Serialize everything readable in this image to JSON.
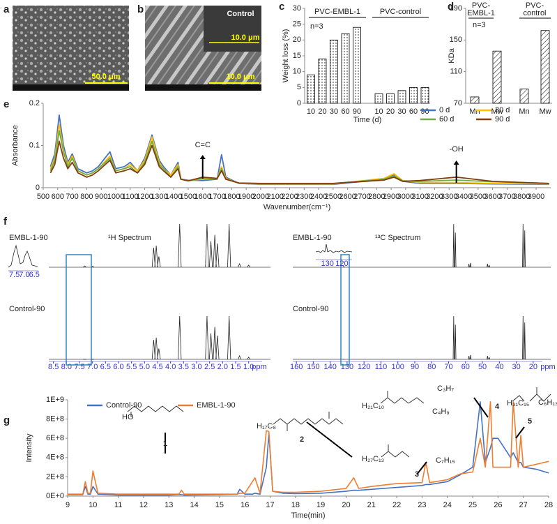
{
  "chart_data": [
    {
      "type": "image",
      "panel": "a",
      "scale_bar": "50.0 μm"
    },
    {
      "type": "image",
      "panel": "b",
      "label": "Control",
      "scale_bars": [
        "10.0 μm",
        "10.0 μm"
      ]
    },
    {
      "type": "bar",
      "panel": "c",
      "y_label": "Weight loss (%)",
      "x_label": "Time (d)",
      "groups": [
        "PVC-EMBL-1",
        "PVC-control"
      ],
      "annotation": "n=3",
      "categories": [
        "10",
        "20",
        "30",
        "60",
        "90",
        "10",
        "20",
        "30",
        "60",
        "90"
      ],
      "values": [
        9,
        14,
        20,
        22,
        24,
        3,
        3,
        4,
        5,
        5
      ],
      "ylim": [
        0,
        30
      ],
      "yticks": [
        0,
        5,
        10,
        15,
        20,
        25,
        30
      ],
      "fill": "dots"
    },
    {
      "type": "bar",
      "panel": "d",
      "y_label": "KDa",
      "groups": [
        [
          "PVC-",
          "EMBL-1"
        ],
        [
          "PVC-",
          "control"
        ]
      ],
      "annotation": "n=3",
      "categories": [
        "Mn",
        "Mw",
        "Mn",
        "Mw"
      ],
      "values": [
        78,
        136,
        88,
        162
      ],
      "ylim": [
        70,
        190
      ],
      "yticks": [
        70,
        110,
        150,
        190
      ],
      "fill": "hatch"
    },
    {
      "type": "line",
      "panel": "e",
      "y_label": "Absorbance",
      "x_label": "Wavenumber(cm⁻¹)",
      "annotations": [
        "C=C",
        "-OH"
      ],
      "xlim": [
        500,
        4000
      ],
      "xticks": [
        500,
        600,
        700,
        800,
        900,
        1000,
        1100,
        1200,
        1300,
        1400,
        1500,
        1600,
        1700,
        1800,
        1900,
        2000,
        2100,
        2200,
        2300,
        2400,
        2500,
        2600,
        2700,
        2800,
        2900,
        3000,
        3100,
        3200,
        3300,
        3400,
        3500,
        3600,
        3700,
        3800,
        3900
      ],
      "ylim": [
        0,
        0.2
      ],
      "yticks": [
        0,
        0.1,
        0.2
      ],
      "x": [
        550,
        580,
        610,
        640,
        670,
        700,
        740,
        800,
        840,
        880,
        960,
        1000,
        1060,
        1100,
        1150,
        1200,
        1250,
        1300,
        1330,
        1380,
        1430,
        1450,
        1500,
        1600,
        1700,
        1730,
        1760,
        1850,
        2000,
        2500,
        2850,
        2920,
        2980,
        3100,
        3350,
        3600,
        3990
      ],
      "series": [
        {
          "name": "0 d",
          "color": "#4472c4",
          "values": [
            0.05,
            0.08,
            0.172,
            0.1,
            0.06,
            0.08,
            0.045,
            0.035,
            0.04,
            0.05,
            0.085,
            0.045,
            0.05,
            0.06,
            0.04,
            0.07,
            0.125,
            0.065,
            0.05,
            0.03,
            0.06,
            0.02,
            0.018,
            0.017,
            0.02,
            0.078,
            0.025,
            0.01,
            0.008,
            0.008,
            0.02,
            0.03,
            0.015,
            0.01,
            0.01,
            0.009,
            0.008
          ]
        },
        {
          "name": "30 d",
          "color": "#ffc000",
          "values": [
            0.045,
            0.07,
            0.15,
            0.09,
            0.055,
            0.075,
            0.04,
            0.03,
            0.035,
            0.045,
            0.075,
            0.04,
            0.045,
            0.055,
            0.04,
            0.065,
            0.12,
            0.06,
            0.045,
            0.03,
            0.055,
            0.02,
            0.017,
            0.02,
            0.022,
            0.05,
            0.022,
            0.01,
            0.009,
            0.009,
            0.022,
            0.033,
            0.017,
            0.012,
            0.012,
            0.01,
            0.009
          ]
        },
        {
          "name": "60 d",
          "color": "#70ad47",
          "values": [
            0.04,
            0.065,
            0.135,
            0.085,
            0.05,
            0.07,
            0.04,
            0.03,
            0.035,
            0.045,
            0.07,
            0.04,
            0.045,
            0.05,
            0.035,
            0.06,
            0.11,
            0.055,
            0.045,
            0.025,
            0.05,
            0.02,
            0.016,
            0.022,
            0.022,
            0.045,
            0.02,
            0.011,
            0.01,
            0.01,
            0.02,
            0.028,
            0.016,
            0.015,
            0.018,
            0.014,
            0.01
          ]
        },
        {
          "name": "90 d",
          "color": "#843c0c",
          "values": [
            0.035,
            0.055,
            0.11,
            0.07,
            0.045,
            0.06,
            0.035,
            0.025,
            0.03,
            0.04,
            0.065,
            0.035,
            0.04,
            0.045,
            0.035,
            0.055,
            0.1,
            0.05,
            0.04,
            0.025,
            0.045,
            0.02,
            0.016,
            0.025,
            0.022,
            0.04,
            0.02,
            0.011,
            0.01,
            0.01,
            0.018,
            0.025,
            0.015,
            0.017,
            0.025,
            0.015,
            0.01
          ]
        }
      ]
    },
    {
      "type": "spectrum",
      "panel": "f",
      "title": "¹H Spectrum",
      "x_unit": "ppm",
      "xlim": [
        9,
        0
      ],
      "xticks": [
        8.5,
        {
          "value": 8,
          "label": "8.0"
        },
        7.5,
        {
          "value": 7,
          "label": "7.0"
        },
        6.5,
        {
          "value": 6,
          "label": "6.0"
        },
        5.5,
        {
          "value": 5,
          "label": "5.0"
        },
        4.5,
        {
          "value": 4,
          "label": "4.0"
        },
        3.5,
        {
          "value": 3,
          "label": "3.0"
        },
        2.5,
        {
          "value": 2,
          "label": "2.0"
        },
        1.5,
        {
          "value": 1,
          "label": "1.0"
        }
      ],
      "inset_ticks": [
        7.5,
        {
          "value": 7,
          "label": "7.0"
        },
        6.5
      ],
      "peaks": [
        7.3,
        7.0,
        4.65,
        4.55,
        4.45,
        3.65,
        2.6,
        2.45,
        2.3,
        2.2,
        1.75,
        1.35,
        1.0
      ],
      "traces": [
        {
          "label": "EMBL-1-90",
          "heights": [
            0.03,
            0.02,
            0.45,
            0.5,
            0.25,
            1,
            1,
            0.6,
            0.75,
            0.55,
            1,
            0.08,
            0.05
          ]
        },
        {
          "label": "Control-90",
          "heights": [
            0,
            0,
            0.45,
            0.5,
            0.25,
            1,
            1,
            0.6,
            0.75,
            0.55,
            1,
            0.08,
            0.05
          ]
        }
      ]
    },
    {
      "type": "spectrum",
      "title": "¹³C Spectrum",
      "x_unit": "ppm",
      "xlim": [
        165,
        15
      ],
      "xticks": [
        160,
        150,
        140,
        130,
        120,
        110,
        100,
        90,
        80,
        70,
        60,
        50,
        40,
        30,
        20
      ],
      "inset_ticks": [
        130,
        120
      ],
      "peaks": [
        132,
        67,
        66,
        58,
        57,
        47,
        46,
        26,
        25
      ],
      "traces": [
        {
          "label": "EMBL-1-90",
          "heights": [
            0.02,
            1,
            0.8,
            0.08,
            0.1,
            0.08,
            0.05,
            1,
            0.85
          ]
        },
        {
          "label": "Control-90",
          "heights": [
            0,
            1,
            0.8,
            0.08,
            0.1,
            0.08,
            0.05,
            1,
            0.85
          ]
        }
      ]
    },
    {
      "type": "line",
      "panel": "g",
      "y_label": "Intensity",
      "x_label": "Time(min)",
      "annotations": [
        "1",
        "2",
        "3",
        "4",
        "5"
      ],
      "structure_labels": [
        "HO",
        "H₁₇C₈",
        "H₂₁C₁₀",
        "C₃H₇",
        "C₄H₉",
        "H₂₇C₁₃",
        "C₇H₁₅",
        "H₃₁C₁₅",
        "C₆H₁₃"
      ],
      "xlim": [
        9,
        28
      ],
      "xticks": [
        9,
        10,
        11,
        12,
        13,
        14,
        15,
        16,
        17,
        18,
        19,
        20,
        21,
        22,
        23,
        24,
        25,
        26,
        27,
        28
      ],
      "ylim": [
        0,
        1000000000
      ],
      "yticks": [
        {
          "value": 0,
          "label": "0E+0"
        },
        {
          "value": 200000000,
          "label": "2E+8"
        },
        {
          "value": 400000000,
          "label": "4E+8"
        },
        {
          "value": 600000000,
          "label": "6E+8"
        },
        {
          "value": 800000000,
          "label": "8E+8"
        },
        {
          "value": 1000000000,
          "label": "1E+9"
        }
      ],
      "x": [
        9,
        9.6,
        9.7,
        9.8,
        9.9,
        10,
        10.2,
        11,
        12,
        13,
        13.4,
        13.5,
        13.6,
        15,
        15.7,
        15.8,
        16,
        16.3,
        16.4,
        16.6,
        16.85,
        16.95,
        17.1,
        17.5,
        18,
        19,
        20,
        20.3,
        20.5,
        21,
        22,
        23,
        23.15,
        23.3,
        24,
        24.5,
        25,
        25.3,
        25.5,
        25.7,
        25.8,
        26,
        26.5,
        26.6,
        26.8,
        26.9,
        27,
        27.5,
        28
      ],
      "series": [
        {
          "name": "Control-90",
          "color": "#4472c4",
          "values": [
            15000000.0,
            15000000.0,
            100000000.0,
            20000000.0,
            20000000.0,
            100000000.0,
            20000000.0,
            10000000.0,
            10000000.0,
            10000000.0,
            15000000.0,
            15000000.0,
            10000000.0,
            15000000.0,
            20000000.0,
            70000000.0,
            20000000.0,
            20000000.0,
            30000000.0,
            20000000.0,
            300000000.0,
            650000000.0,
            50000000.0,
            30000000.0,
            25000000.0,
            30000000.0,
            50000000.0,
            60000000.0,
            60000000.0,
            70000000.0,
            90000000.0,
            110000000.0,
            120000000.0,
            120000000.0,
            150000000.0,
            220000000.0,
            300000000.0,
            980000000.0,
            350000000.0,
            500000000.0,
            600000000.0,
            600000000.0,
            400000000.0,
            450000000.0,
            350000000.0,
            350000000.0,
            300000000.0,
            280000000.0,
            240000000.0
          ]
        },
        {
          "name": "EMBL-1-90",
          "color": "#ed7d31",
          "values": [
            20000000.0,
            20000000.0,
            150000000.0,
            30000000.0,
            30000000.0,
            260000000.0,
            30000000.0,
            20000000.0,
            20000000.0,
            20000000.0,
            20000000.0,
            60000000.0,
            20000000.0,
            20000000.0,
            20000000.0,
            30000000.0,
            30000000.0,
            150000000.0,
            190000000.0,
            30000000.0,
            680000000.0,
            670000000.0,
            50000000.0,
            40000000.0,
            40000000.0,
            50000000.0,
            80000000.0,
            190000000.0,
            80000000.0,
            100000000.0,
            130000000.0,
            140000000.0,
            350000000.0,
            140000000.0,
            170000000.0,
            230000000.0,
            250000000.0,
            600000000.0,
            300000000.0,
            980000000.0,
            300000000.0,
            300000000.0,
            300000000.0,
            980000000.0,
            300000000.0,
            630000000.0,
            300000000.0,
            330000000.0,
            360000000.0
          ]
        }
      ]
    }
  ]
}
